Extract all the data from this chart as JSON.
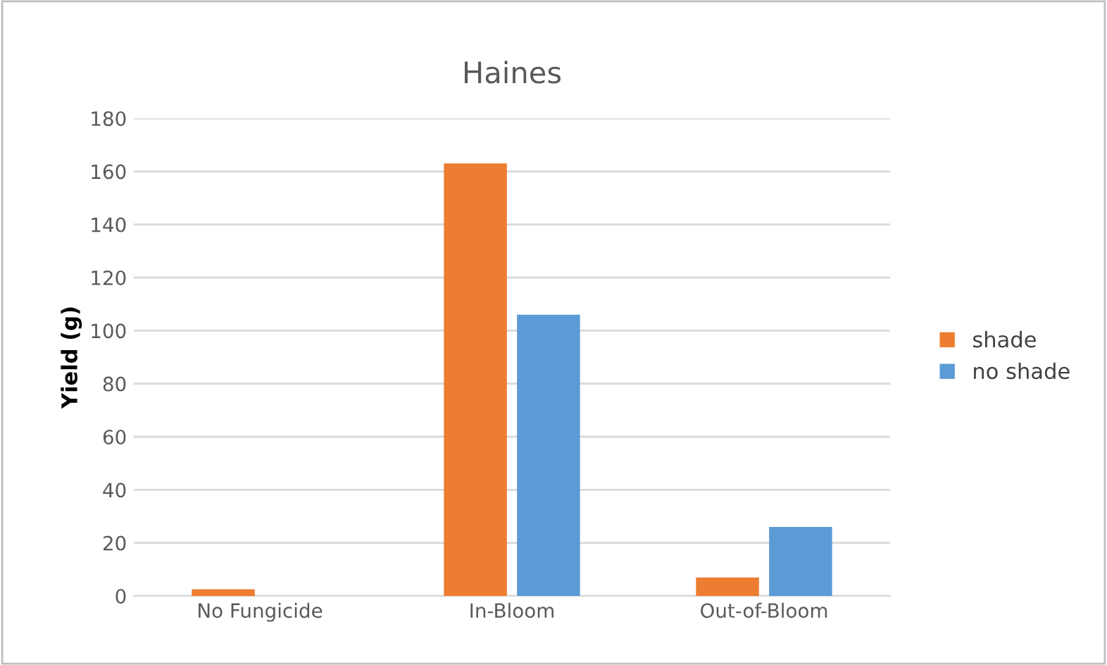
{
  "chart_data": {
    "type": "bar",
    "title": "Haines",
    "ylabel": "Yield (g)",
    "categories": [
      "No Fungicide",
      "In-Bloom",
      "Out-of-Bloom"
    ],
    "series": [
      {
        "name": "shade",
        "color": "#ed7d31",
        "values": [
          2.5,
          163,
          7
        ]
      },
      {
        "name": "no shade",
        "color": "#5b9bd5",
        "values": [
          0,
          106,
          26
        ]
      }
    ],
    "ylim": [
      0,
      180
    ],
    "yticks": [
      0,
      20,
      40,
      60,
      80,
      100,
      120,
      140,
      160,
      180
    ],
    "grid": "y",
    "legend": "right"
  }
}
